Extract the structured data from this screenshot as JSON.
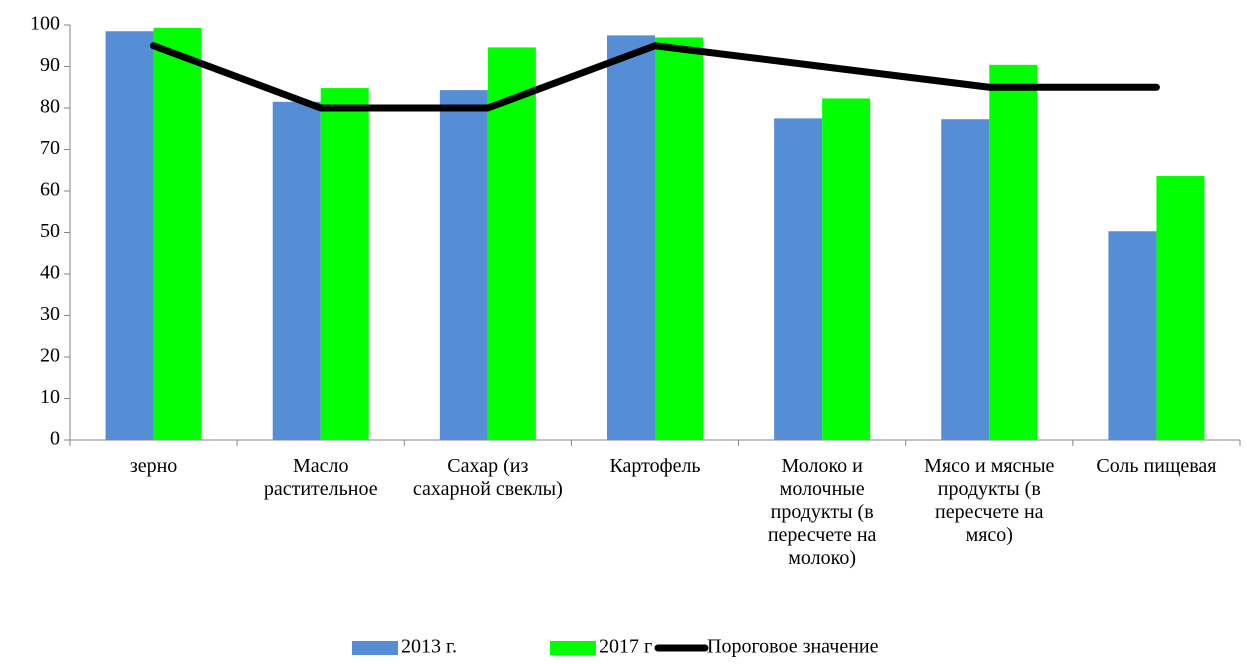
{
  "chart_data": {
    "type": "bar",
    "categories": [
      "зерно",
      "Масло растительное",
      "Сахар (из сахарной свеклы)",
      "Картофель",
      "Молоко и молочные продукты (в пересчете на молоко)",
      "Мясо и мясные продукты (в пересчете на мясо)",
      "Соль пищевая"
    ],
    "series": [
      {
        "name": "2013 г.",
        "type": "bar",
        "color": "#558ed5",
        "values": [
          98.5,
          81.5,
          84.3,
          97.5,
          77.5,
          77.3,
          50.3
        ]
      },
      {
        "name": "2017 г",
        "type": "bar",
        "color": "#00ff00",
        "values": [
          99.3,
          84.8,
          94.6,
          97.0,
          82.3,
          90.4,
          63.6
        ]
      },
      {
        "name": "Пороговое значение",
        "type": "line",
        "color": "#000000",
        "values": [
          95,
          80,
          80,
          95,
          90,
          85,
          85
        ]
      }
    ],
    "ylim": [
      0,
      100
    ],
    "yticks": [
      0,
      10,
      20,
      30,
      40,
      50,
      60,
      70,
      80,
      90,
      100
    ],
    "grid": false,
    "legend": "bottom"
  }
}
